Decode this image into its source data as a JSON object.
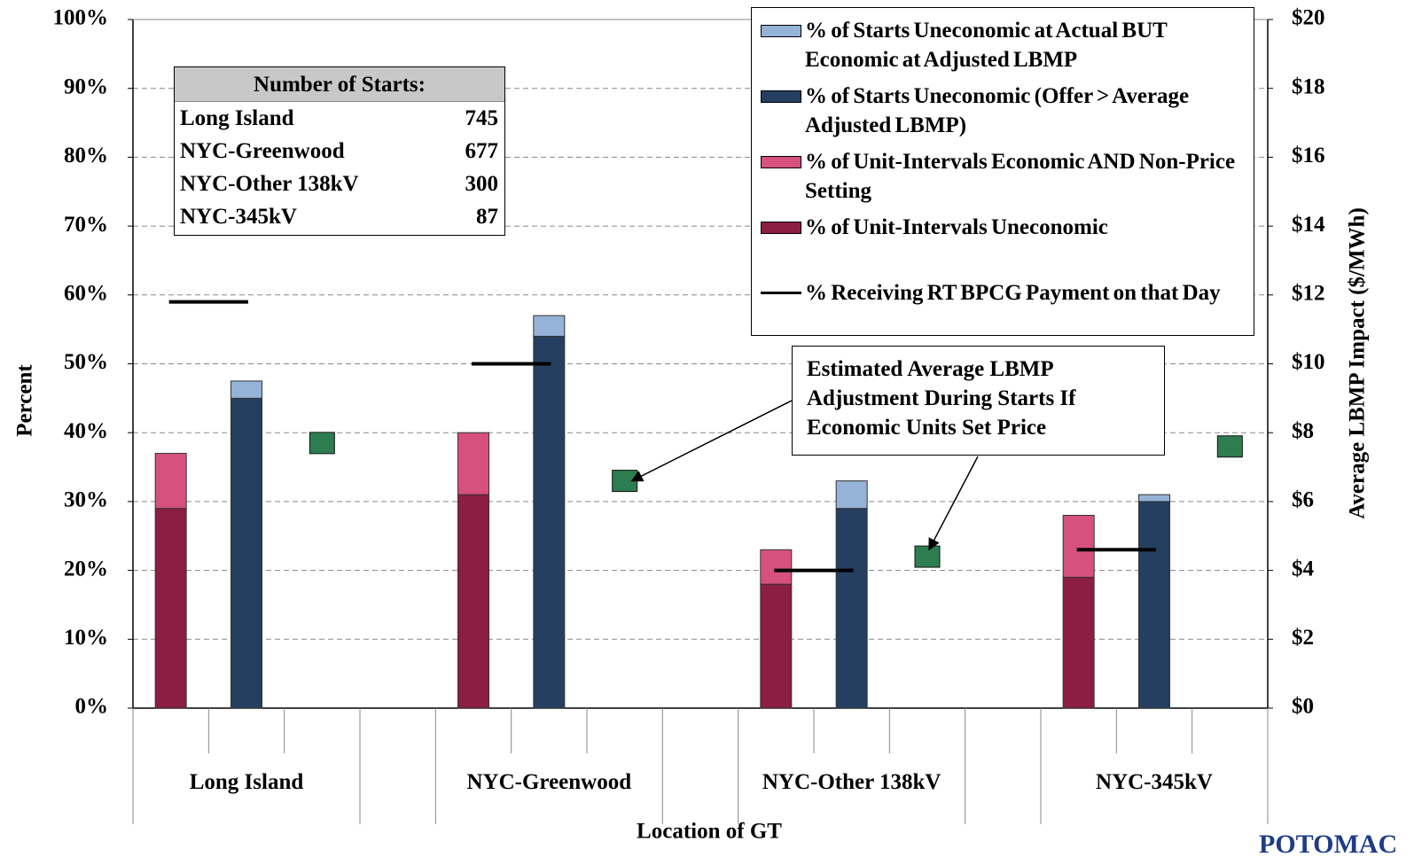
{
  "chart_data": {
    "type": "bar",
    "stacked": true,
    "categories": [
      "Long Island",
      "NYC-Greenwood",
      "NYC-Other 138kV",
      "NYC-345kV"
    ],
    "series": [
      {
        "name": "% of Starts Uneconomic at Actual BUT Economic at Adjusted LBMP",
        "color": "#95b3d7",
        "values": [
          2.5,
          3,
          4,
          1
        ],
        "stack": "starts"
      },
      {
        "name": "% of Starts Uneconomic (Offer > Average Adjusted LBMP)",
        "color": "#243f60",
        "values": [
          45,
          54,
          29,
          30
        ],
        "stack": "starts"
      },
      {
        "name": "% of Unit-Intervals Economic AND Non-Price Setting",
        "color": "#d6517d",
        "values": [
          8,
          9,
          5,
          9
        ],
        "stack": "intervals"
      },
      {
        "name": "% of Unit-Intervals Uneconomic",
        "color": "#8b1e42",
        "values": [
          29,
          31,
          18,
          19
        ],
        "stack": "intervals"
      },
      {
        "name": "% Receiving RT BPCG Payment on that Day",
        "color": "#000000",
        "values": [
          59,
          50,
          20,
          23
        ],
        "kind": "line"
      },
      {
        "color": "#2e7d50",
        "values": [
          7.7,
          6.6,
          4.4,
          7.6
        ],
        "axis": "y2",
        "kind": "marker"
      }
    ],
    "x_label": "Location of GT",
    "y_label": "Percent",
    "y2_label": "Average LBMP Impact ($/MWh)",
    "ylim": [
      0,
      100
    ],
    "yticks": [
      {
        "value": 0,
        "label": "0%"
      },
      {
        "value": 10,
        "label": "10%"
      },
      {
        "value": 20,
        "label": "20%"
      },
      {
        "value": 30,
        "label": "30%"
      },
      {
        "value": 40,
        "label": "40%"
      },
      {
        "value": 50,
        "label": "50%"
      },
      {
        "value": 60,
        "label": "60%"
      },
      {
        "value": 70,
        "label": "70%"
      },
      {
        "value": 80,
        "label": "80%"
      },
      {
        "value": 90,
        "label": "90%"
      },
      {
        "value": 100,
        "label": "100%"
      }
    ],
    "y2lim": [
      0,
      20
    ],
    "y2ticks": [
      {
        "value": 0,
        "label": "$0"
      },
      {
        "value": 2,
        "label": "$2"
      },
      {
        "value": 4,
        "label": "$4"
      },
      {
        "value": 6,
        "label": "$6"
      },
      {
        "value": 8,
        "label": "$8"
      },
      {
        "value": 10,
        "label": "$10"
      },
      {
        "value": 12,
        "label": "$12"
      },
      {
        "value": 14,
        "label": "$14"
      },
      {
        "value": 16,
        "label": "$16"
      },
      {
        "value": 18,
        "label": "$18"
      },
      {
        "value": 20,
        "label": "$20"
      }
    ],
    "grid": true,
    "legend": "top-right",
    "annotation": "Estimated Average LBMP Adjustment During Starts If Economic Units Set Price",
    "inset_table": {
      "title": "Number of Starts:",
      "rows": [
        [
          "Long Island",
          745
        ],
        [
          "NYC-Greenwood",
          677
        ],
        [
          "NYC-Other 138kV",
          300
        ],
        [
          "NYC-345kV",
          87
        ]
      ]
    }
  },
  "logo": "POTOMAC"
}
